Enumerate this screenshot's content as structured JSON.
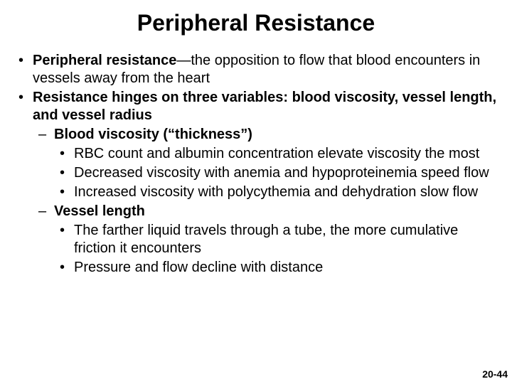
{
  "title": "Peripheral Resistance",
  "bullets": {
    "b1_bold": "Peripheral resistance",
    "b1_rest": "—the opposition to flow that blood encounters in vessels away from the heart",
    "b2": "Resistance hinges on three variables: blood viscosity, vessel length, and vessel radius",
    "b2_s1": "Blood viscosity (“thickness”)",
    "b2_s1_a": "RBC count and albumin concentration elevate viscosity the most",
    "b2_s1_b": "Decreased viscosity with anemia and hypoproteinemia speed flow",
    "b2_s1_c": "Increased viscosity with polycythemia and dehydration slow flow",
    "b2_s2": "Vessel length",
    "b2_s2_a": "The farther liquid travels through a tube, the more cumulative friction it encounters",
    "b2_s2_b": "Pressure and flow decline with distance"
  },
  "page_number": "20-44"
}
